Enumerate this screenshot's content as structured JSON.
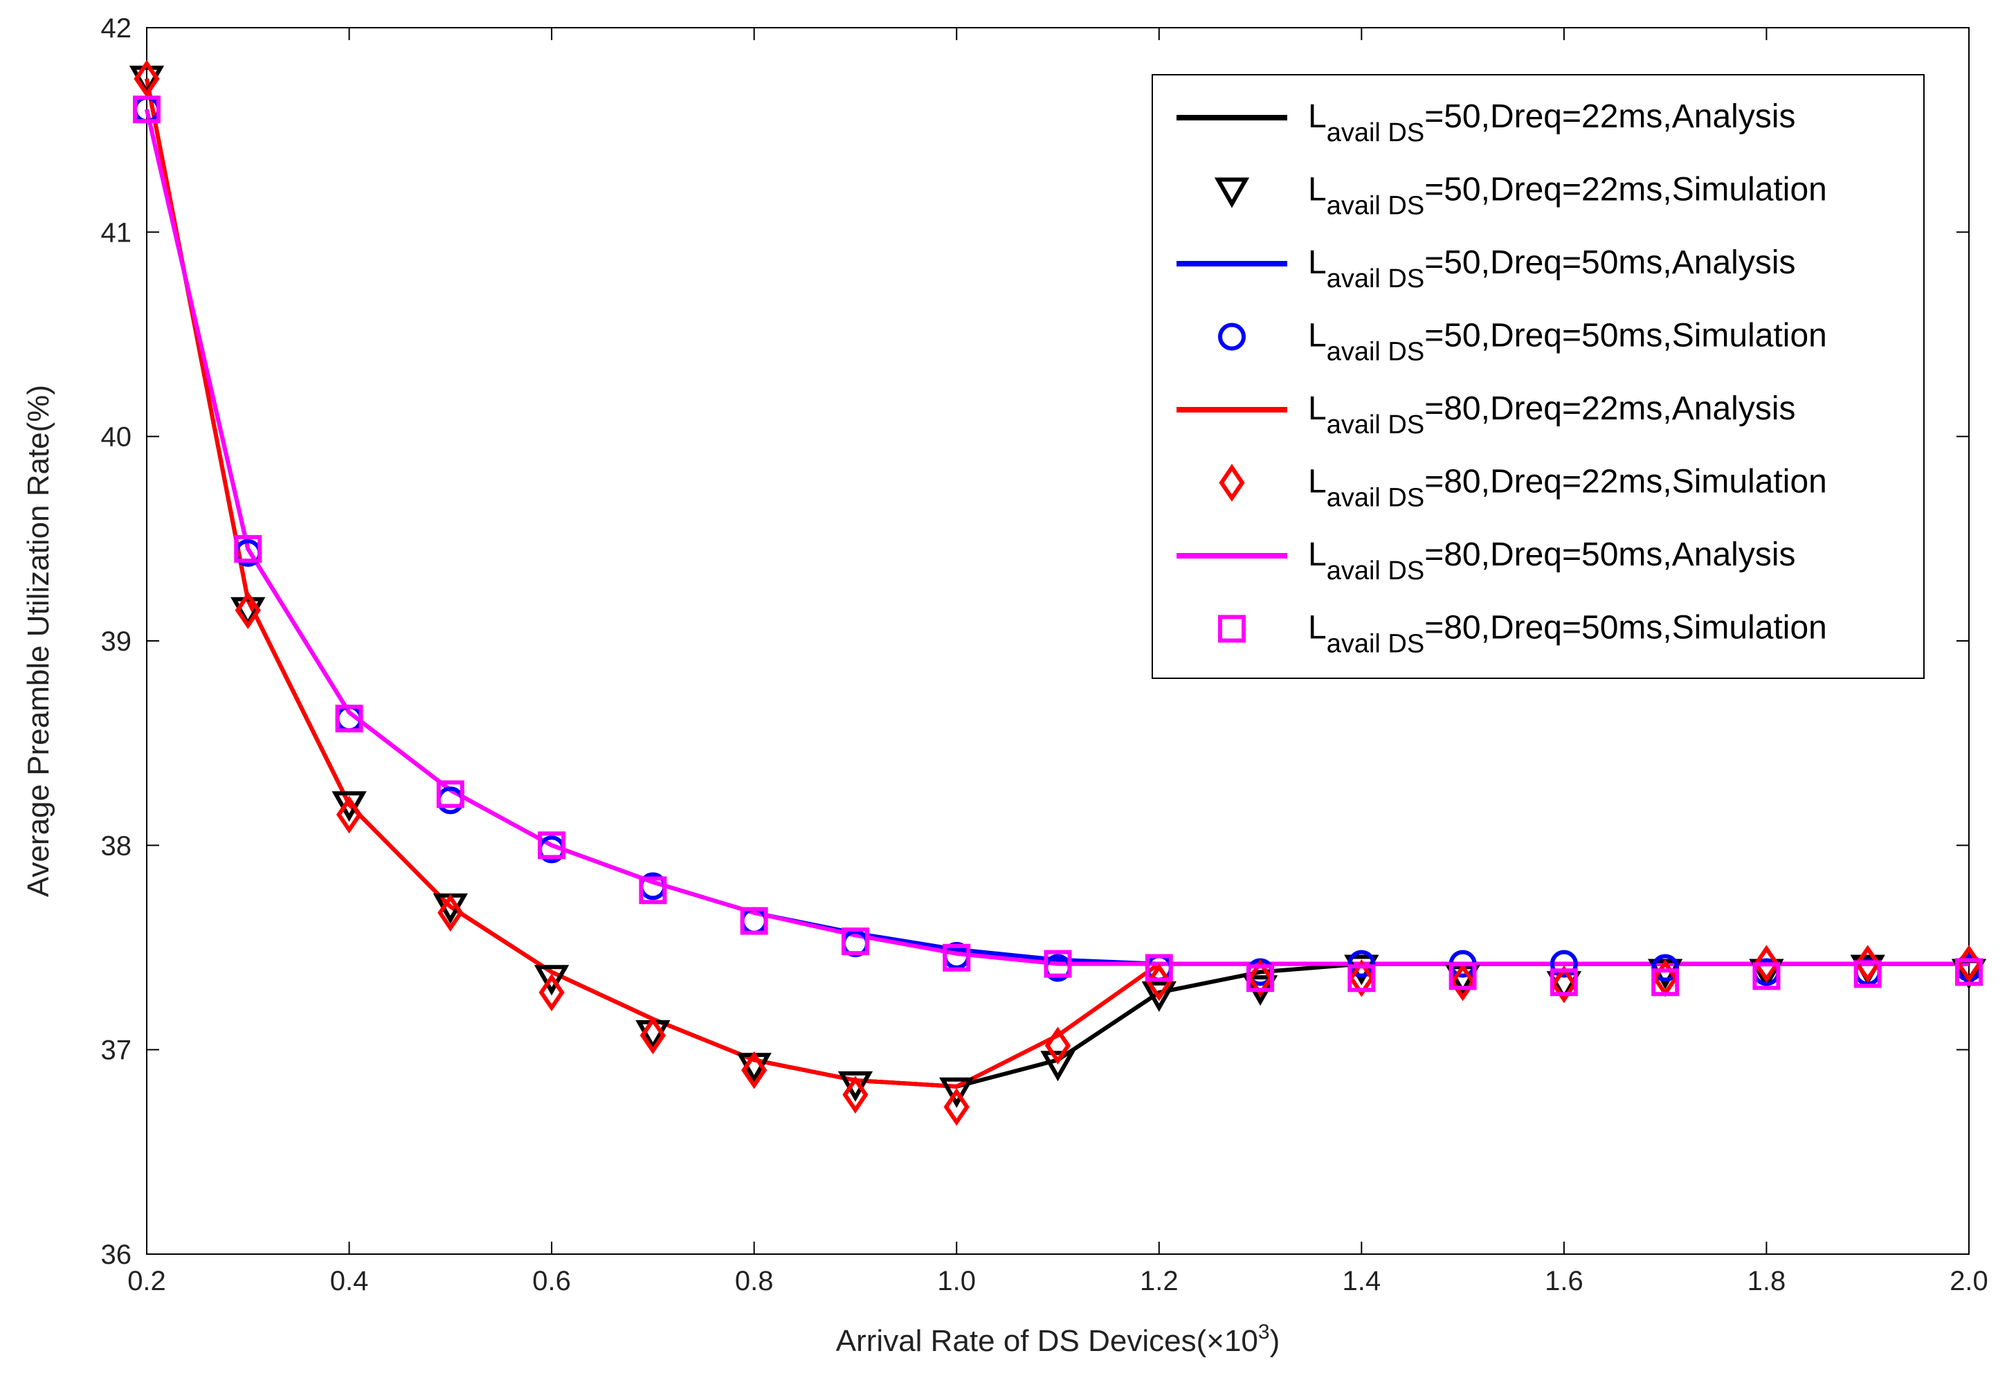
{
  "chart_data": {
    "type": "line",
    "title": "",
    "xlabel": "Arrival Rate of DS Devices(×10",
    "xlabel_sup": "3",
    "xlabel_close": ")",
    "ylabel": "Average Preamble Utilization Rate(%)",
    "xlim": [
      0.2,
      2.0
    ],
    "ylim": [
      36,
      42
    ],
    "x_ticks": [
      0.2,
      0.4,
      0.6,
      0.8,
      1.0,
      1.2,
      1.4,
      1.6,
      1.8,
      2.0
    ],
    "x_tick_labels": [
      "0.2",
      "0.4",
      "0.6",
      "0.8",
      "1.0",
      "1.2",
      "1.4",
      "1.6",
      "1.8",
      "2.0"
    ],
    "y_ticks": [
      36,
      37,
      38,
      39,
      40,
      41,
      42
    ],
    "y_tick_labels": [
      "36",
      "37",
      "38",
      "39",
      "40",
      "41",
      "42"
    ],
    "grid": false,
    "legend_position": "top-right",
    "x": [
      0.2,
      0.3,
      0.4,
      0.5,
      0.6,
      0.7,
      0.8,
      0.9,
      1.0,
      1.1,
      1.2,
      1.3,
      1.4,
      1.5,
      1.6,
      1.7,
      1.8,
      1.9,
      2.0
    ],
    "series": [
      {
        "name": "L avail DS=50,Dreq=22ms,Analysis",
        "legend_main": "L",
        "legend_sub": "avail DS",
        "legend_rest": "=50,Dreq=22ms,Analysis",
        "kind": "line",
        "color": "#000000",
        "values": [
          41.75,
          39.2,
          38.2,
          37.7,
          37.38,
          37.15,
          36.95,
          36.85,
          36.82,
          36.95,
          37.28,
          37.38,
          37.42,
          37.42,
          37.42,
          37.42,
          37.42,
          37.42,
          37.42
        ]
      },
      {
        "name": "L avail DS=50,Dreq=22ms,Simulation",
        "legend_main": "L",
        "legend_sub": "avail DS",
        "legend_rest": "=50,Dreq=22ms,Simulation",
        "kind": "marker",
        "marker": "triangle-down",
        "color": "#000000",
        "values": [
          41.75,
          39.15,
          38.2,
          37.7,
          37.35,
          37.08,
          36.92,
          36.83,
          36.8,
          36.93,
          37.27,
          37.3,
          37.4,
          37.35,
          37.32,
          37.38,
          37.38,
          37.4,
          37.38
        ]
      },
      {
        "name": "L avail DS=50,Dreq=50ms,Analysis",
        "legend_main": "L",
        "legend_sub": "avail DS",
        "legend_rest": "=50,Dreq=50ms,Analysis",
        "kind": "line",
        "color": "#0000ff",
        "values": [
          41.6,
          39.45,
          38.65,
          38.27,
          38.0,
          37.82,
          37.67,
          37.57,
          37.49,
          37.44,
          37.42,
          37.42,
          37.42,
          37.42,
          37.42,
          37.42,
          37.42,
          37.42,
          37.42
        ]
      },
      {
        "name": "L avail DS=50,Dreq=50ms,Simulation",
        "legend_main": "L",
        "legend_sub": "avail DS",
        "legend_rest": "=50,Dreq=50ms,Simulation",
        "kind": "marker",
        "marker": "circle",
        "color": "#0000ff",
        "values": [
          41.6,
          39.43,
          38.62,
          38.22,
          37.98,
          37.8,
          37.63,
          37.52,
          37.46,
          37.4,
          37.4,
          37.38,
          37.42,
          37.42,
          37.42,
          37.4,
          37.38,
          37.38,
          37.4
        ]
      },
      {
        "name": "L avail DS=80,Dreq=22ms,Analysis",
        "legend_main": "L",
        "legend_sub": "avail DS",
        "legend_rest": "=80,Dreq=22ms,Analysis",
        "kind": "line",
        "color": "#ff0000",
        "values": [
          41.75,
          39.2,
          38.2,
          37.7,
          37.38,
          37.15,
          36.95,
          36.85,
          36.82,
          37.07,
          37.42,
          37.42,
          37.42,
          37.42,
          37.42,
          37.42,
          37.42,
          37.42,
          37.42
        ]
      },
      {
        "name": "L avail DS=80,Dreq=22ms,Simulation",
        "legend_main": "L",
        "legend_sub": "avail DS",
        "legend_rest": "=80,Dreq=22ms,Simulation",
        "kind": "marker",
        "marker": "diamond",
        "color": "#ff0000",
        "values": [
          41.75,
          39.15,
          38.15,
          37.67,
          37.28,
          37.07,
          36.9,
          36.78,
          36.72,
          37.02,
          37.33,
          37.35,
          37.35,
          37.33,
          37.32,
          37.35,
          37.42,
          37.42,
          37.42
        ]
      },
      {
        "name": "L avail DS=80,Dreq=50ms,Analysis",
        "legend_main": "L",
        "legend_sub": "avail DS",
        "legend_rest": "=80,Dreq=50ms,Analysis",
        "kind": "line",
        "color": "#ff00ff",
        "values": [
          41.6,
          39.45,
          38.65,
          38.27,
          38.0,
          37.82,
          37.67,
          37.56,
          37.47,
          37.42,
          37.42,
          37.42,
          37.42,
          37.42,
          37.42,
          37.42,
          37.42,
          37.42,
          37.42
        ]
      },
      {
        "name": "L avail DS=80,Dreq=50ms,Simulation",
        "legend_main": "L",
        "legend_sub": "avail DS",
        "legend_rest": "=80,Dreq=50ms,Simulation",
        "kind": "marker",
        "marker": "square",
        "color": "#ff00ff",
        "values": [
          41.6,
          39.45,
          38.62,
          38.25,
          38.0,
          37.78,
          37.63,
          37.53,
          37.45,
          37.42,
          37.4,
          37.35,
          37.35,
          37.36,
          37.33,
          37.33,
          37.36,
          37.37,
          37.38
        ]
      }
    ]
  }
}
